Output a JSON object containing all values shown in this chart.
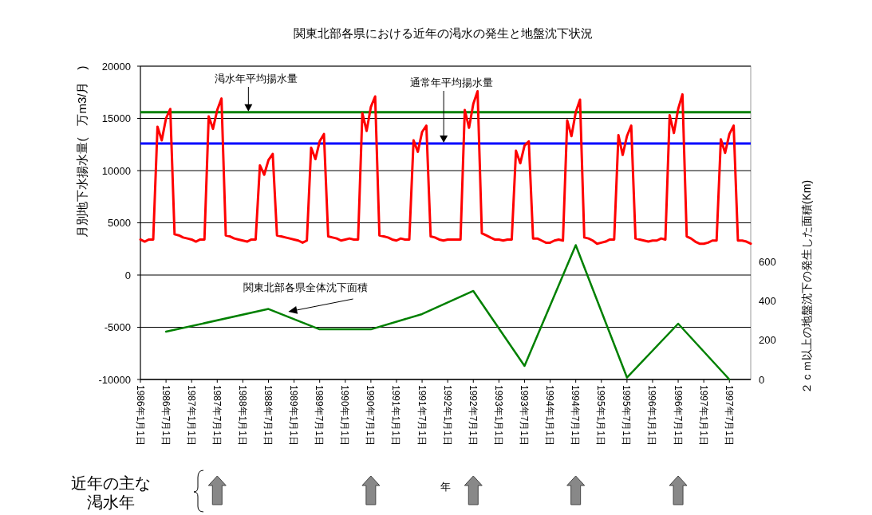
{
  "chart_data": {
    "type": "line",
    "title": "関東北部各県における近年の渇水の発生と地盤沈下状況",
    "ylabel": "月別地下水揚水量(　万m3/月　)",
    "y2label": "２ｃｍ以上の地盤沈下の発生した面積(Km)",
    "x": [
      "1986-01",
      "1986-02",
      "1986-03",
      "1986-04",
      "1986-05",
      "1986-06",
      "1986-07",
      "1986-08",
      "1986-09",
      "1986-10",
      "1986-11",
      "1986-12",
      "1987-01",
      "1987-02",
      "1987-03",
      "1987-04",
      "1987-05",
      "1987-06",
      "1987-07",
      "1987-08",
      "1987-09",
      "1987-10",
      "1987-11",
      "1987-12",
      "1988-01",
      "1988-02",
      "1988-03",
      "1988-04",
      "1988-05",
      "1988-06",
      "1988-07",
      "1988-08",
      "1988-09",
      "1988-10",
      "1988-11",
      "1988-12",
      "1989-01",
      "1989-02",
      "1989-03",
      "1989-04",
      "1989-05",
      "1989-06",
      "1989-07",
      "1989-08",
      "1989-09",
      "1989-10",
      "1989-11",
      "1989-12",
      "1990-01",
      "1990-02",
      "1990-03",
      "1990-04",
      "1990-05",
      "1990-06",
      "1990-07",
      "1990-08",
      "1990-09",
      "1990-10",
      "1990-11",
      "1990-12",
      "1991-01",
      "1991-02",
      "1991-03",
      "1991-04",
      "1991-05",
      "1991-06",
      "1991-07",
      "1991-08",
      "1991-09",
      "1991-10",
      "1991-11",
      "1991-12",
      "1992-01",
      "1992-02",
      "1992-03",
      "1992-04",
      "1992-05",
      "1992-06",
      "1992-07",
      "1992-08",
      "1992-09",
      "1992-10",
      "1992-11",
      "1992-12",
      "1993-01",
      "1993-02",
      "1993-03",
      "1993-04",
      "1993-05",
      "1993-06",
      "1993-07",
      "1993-08",
      "1993-09",
      "1993-10",
      "1993-11",
      "1993-12",
      "1994-01",
      "1994-02",
      "1994-03",
      "1994-04",
      "1994-05",
      "1994-06",
      "1994-07",
      "1994-08",
      "1994-09",
      "1994-10",
      "1994-11",
      "1994-12",
      "1995-01",
      "1995-02",
      "1995-03",
      "1995-04",
      "1995-05",
      "1995-06",
      "1995-07",
      "1995-08",
      "1995-09",
      "1995-10",
      "1995-11",
      "1995-12",
      "1996-01",
      "1996-02",
      "1996-03",
      "1996-04",
      "1996-05",
      "1996-06",
      "1996-07",
      "1996-08",
      "1996-09",
      "1996-10",
      "1996-11",
      "1996-12",
      "1997-01",
      "1997-02",
      "1997-03",
      "1997-04",
      "1997-05",
      "1997-06",
      "1997-07",
      "1997-08",
      "1997-09",
      "1997-10",
      "1997-11",
      "1997-12"
    ],
    "series": [
      {
        "color": "#ff0000",
        "values": [
          3400,
          3200,
          3400,
          3400,
          14200,
          12900,
          15000,
          15900,
          3900,
          3800,
          3600,
          3500,
          3400,
          3200,
          3400,
          3400,
          15200,
          14000,
          15800,
          16900,
          3800,
          3700,
          3500,
          3400,
          3300,
          3200,
          3400,
          3400,
          10500,
          9600,
          11000,
          11600,
          3800,
          3700,
          3600,
          3500,
          3400,
          3300,
          3100,
          3300,
          12200,
          11100,
          12800,
          13500,
          3700,
          3600,
          3500,
          3300,
          3400,
          3500,
          3400,
          3400,
          15500,
          13800,
          16100,
          17100,
          3800,
          3700,
          3600,
          3400,
          3300,
          3500,
          3400,
          3400,
          12900,
          11800,
          13700,
          14300,
          3700,
          3600,
          3400,
          3300,
          3400,
          3400,
          3400,
          3400,
          15800,
          14100,
          16400,
          17600,
          4000,
          3800,
          3600,
          3400,
          3400,
          3300,
          3400,
          3400,
          11900,
          10700,
          12400,
          12800,
          3500,
          3500,
          3300,
          3100,
          3100,
          3300,
          3400,
          3300,
          14800,
          13300,
          15600,
          16800,
          3600,
          3500,
          3300,
          3000,
          3100,
          3200,
          3400,
          3400,
          13400,
          11500,
          13300,
          14300,
          3500,
          3400,
          3300,
          3200,
          3300,
          3300,
          3500,
          3400,
          15300,
          13600,
          15900,
          17300,
          3700,
          3500,
          3200,
          3000,
          3000,
          3100,
          3300,
          3300,
          13000,
          11700,
          13500,
          14300,
          3300,
          3300,
          3200,
          3000
        ]
      },
      {
        "name": "関東北部各県全体沈下面積",
        "color": "#008000",
        "axis": "y2",
        "x": [
          "1986-07",
          "1988-07",
          "1989-07",
          "1990-07",
          "1991-07",
          "1992-07",
          "1993-07",
          "1994-07",
          "1995-07",
          "1996-07",
          "1997-07"
        ],
        "values": [
          244,
          360,
          256,
          256,
          334,
          452,
          69,
          686,
          10,
          285,
          0
        ]
      }
    ],
    "xlim": [
      "1986-01",
      "1997-12"
    ],
    "xticks": [
      {
        "value": "1986-01-01",
        "label": "1986年1月1日"
      },
      {
        "value": "1986-07-01",
        "label": "1986年7月1日"
      },
      {
        "value": "1987-01-01",
        "label": "1987年1月1日"
      },
      {
        "value": "1987-07-01",
        "label": "1987年7月1日"
      },
      {
        "value": "1988-01-01",
        "label": "1988年1月1日"
      },
      {
        "value": "1988-07-01",
        "label": "1988年7月1日"
      },
      {
        "value": "1989-01-01",
        "label": "1989年1月1日"
      },
      {
        "value": "1989-07-01",
        "label": "1989年7月1日"
      },
      {
        "value": "1990-01-01",
        "label": "1990年1月1日"
      },
      {
        "value": "1990-07-01",
        "label": "1990年7月1日"
      },
      {
        "value": "1991-01-01",
        "label": "1991年1月1日"
      },
      {
        "value": "1991-07-01",
        "label": "1991年7月1日"
      },
      {
        "value": "1992-01-01",
        "label": "1992年1月1日"
      },
      {
        "value": "1992-07-01",
        "label": "1992年7月1日"
      },
      {
        "value": "1993-01-01",
        "label": "1993年1月1日"
      },
      {
        "value": "1993-07-01",
        "label": "1993年7月1日"
      },
      {
        "value": "1994-01-01",
        "label": "1994年1月1日"
      },
      {
        "value": "1994-07-01",
        "label": "1994年7月1日"
      },
      {
        "value": "1995-01-01",
        "label": "1995年1月1日"
      },
      {
        "value": "1995-07-01",
        "label": "1995年7月1日"
      },
      {
        "value": "1996-01-01",
        "label": "1996年1月1日"
      },
      {
        "value": "1996-07-01",
        "label": "1996年7月1日"
      },
      {
        "value": "1997-01-01",
        "label": "1997年1月1日"
      },
      {
        "value": "1997-07-01",
        "label": "1997年7月1日"
      }
    ],
    "ylim": [
      -10000,
      20000
    ],
    "yticks": [
      -10000,
      -5000,
      0,
      5000,
      10000,
      15000,
      20000
    ],
    "y2lim": [
      0,
      1600
    ],
    "y2ticks": [
      0,
      200,
      400,
      600
    ],
    "ref_lines": [
      {
        "axis": "y",
        "value": 15600,
        "label": "渇水年平均揚水量",
        "color": "#008000"
      },
      {
        "axis": "y",
        "value": 12600,
        "label": "通常年平均揚水量",
        "color": "#0000ff"
      }
    ],
    "annotations": [
      "年",
      "近年の主な渇水年"
    ],
    "grid": "y",
    "marker": "none",
    "line_style": "solid"
  }
}
